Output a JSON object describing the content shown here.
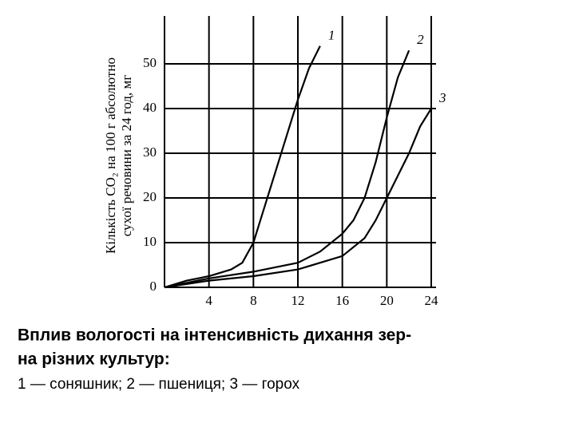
{
  "chart_data": {
    "type": "line",
    "ylabel_lines": [
      "Кількість CO₂ на 100 г абсолютно",
      "сухої речовини за 24 год, мг"
    ],
    "caption_lines": [
      "Вплив вологості на інтенсивність дихання зер-",
      "на різних культур:"
    ],
    "legend_text": "1 — соняшник; 2 — пшениця; 3 — горох",
    "xlim": [
      0,
      24
    ],
    "ylim": [
      0,
      60
    ],
    "xticks": [
      4,
      8,
      12,
      16,
      20,
      24
    ],
    "yticks": [
      0,
      10,
      20,
      30,
      40,
      50
    ],
    "grid": true,
    "series": [
      {
        "name": "1",
        "color": "#000000",
        "x": [
          0,
          2,
          4,
          6,
          7,
          8,
          9,
          10,
          11,
          12,
          13,
          14
        ],
        "values": [
          0,
          1.5,
          2.5,
          4,
          5.5,
          10,
          18,
          26,
          34,
          42,
          49,
          54
        ]
      },
      {
        "name": "2",
        "color": "#000000",
        "x": [
          0,
          4,
          8,
          12,
          14,
          16,
          17,
          18,
          19,
          20,
          21,
          22
        ],
        "values": [
          0,
          2,
          3.5,
          5.5,
          8,
          12,
          15,
          20,
          28,
          38,
          47,
          53
        ]
      },
      {
        "name": "3",
        "color": "#000000",
        "x": [
          0,
          4,
          8,
          12,
          16,
          18,
          19,
          20,
          21,
          22,
          23,
          24
        ],
        "values": [
          0,
          1.5,
          2.5,
          4,
          7,
          11,
          15,
          20,
          25,
          30,
          36,
          40
        ]
      }
    ]
  }
}
